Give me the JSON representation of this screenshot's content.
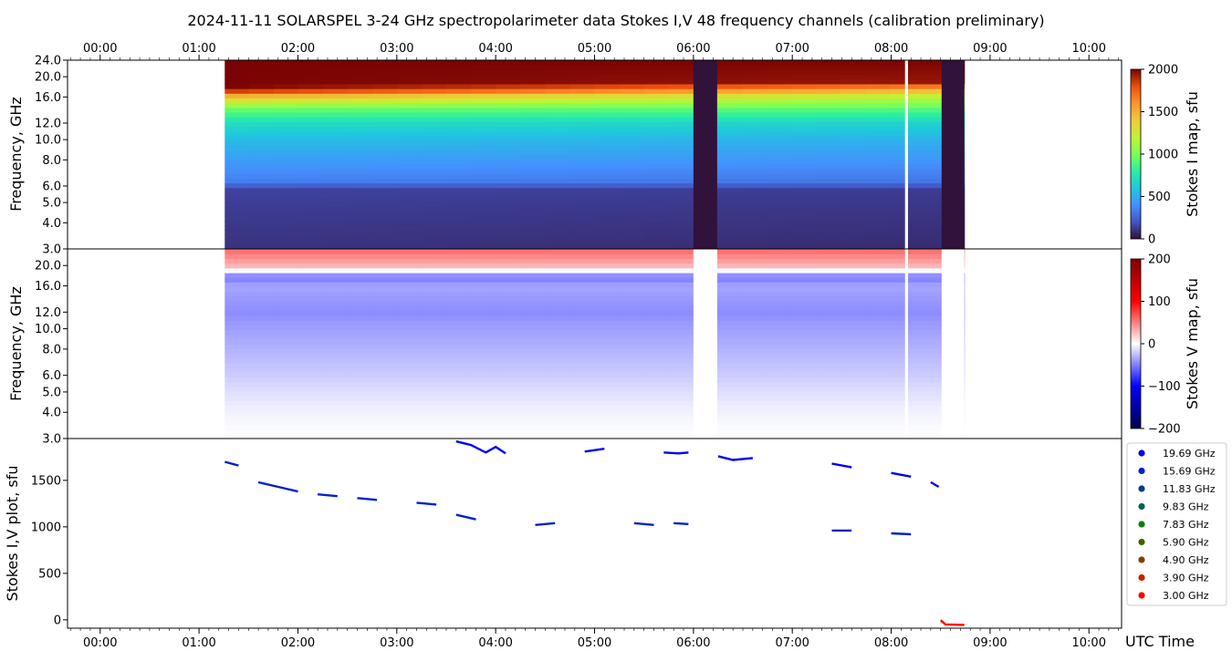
{
  "title": "2024-11-11   SOLARSPEL  3-24 GHz spectropolarimeter data   Stokes I,V   48 frequency channels   (calibration preliminary)",
  "x_axis": {
    "label": "UTC Time",
    "range_hours": [
      -0.33,
      10.33
    ],
    "ticks": [
      "00:00",
      "01:00",
      "02:00",
      "03:00",
      "04:00",
      "05:00",
      "06:00",
      "07:00",
      "08:00",
      "09:00",
      "10:00"
    ]
  },
  "chart_data": [
    {
      "type": "heatmap",
      "name": "stokes-i-map",
      "ylabel": "Frequency, GHz",
      "y_scale": "log",
      "ylim": [
        3.0,
        24.0
      ],
      "y_ticks": [
        "3.0",
        "4.0",
        "5.0",
        "6.0",
        "8.0",
        "10.0",
        "12.0",
        "16.0",
        "20.0",
        "24.0"
      ],
      "colorbar": {
        "label": "Stokes I map, sfu",
        "colormap": "turbo",
        "range": [
          0,
          2000
        ],
        "ticks": [
          "0",
          "500",
          "1000",
          "1500",
          "2000"
        ]
      },
      "data_span_hours": [
        1.26,
        8.74
      ],
      "gaps_hours": [
        [
          6.0,
          6.24
        ],
        [
          8.14,
          8.17
        ],
        [
          8.51,
          8.74
        ]
      ],
      "profile": {
        "freq_ghz": [
          3.0,
          6.0,
          6.1,
          8.0,
          10.0,
          12.0,
          14.0,
          16.0,
          17.5,
          19.0,
          24.0
        ],
        "sfu_start": [
          100,
          150,
          330,
          450,
          560,
          700,
          950,
          1400,
          2000,
          2000,
          2000
        ],
        "sfu_end": [
          80,
          130,
          300,
          420,
          520,
          650,
          900,
          1150,
          1500,
          1950,
          2000
        ]
      }
    },
    {
      "type": "heatmap",
      "name": "stokes-v-map",
      "ylabel": "Frequency, GHz",
      "y_scale": "log",
      "ylim": [
        3.0,
        24.0
      ],
      "y_ticks": [
        "3.0",
        "4.0",
        "5.0",
        "6.0",
        "8.0",
        "10.0",
        "12.0",
        "16.0",
        "20.0"
      ],
      "colorbar": {
        "label": "Stokes V map, sfu",
        "colormap": "seismic",
        "range": [
          -200,
          200
        ],
        "ticks": [
          "−200",
          "−100",
          "0",
          "100",
          "200"
        ]
      },
      "data_span_hours": [
        1.26,
        8.74
      ],
      "gaps_hours": [
        [
          6.0,
          6.24
        ],
        [
          8.14,
          8.17
        ],
        [
          8.51,
          8.74
        ]
      ],
      "profile": {
        "freq_ghz": [
          3.0,
          4.0,
          6.0,
          8.0,
          10.0,
          12.0,
          16.0,
          17.8,
          19.5,
          22.0,
          24.0
        ],
        "sfu": [
          0,
          -5,
          -20,
          -30,
          -38,
          -45,
          -35,
          -55,
          25,
          45,
          60
        ]
      }
    },
    {
      "type": "scatter",
      "name": "stokes-iv-plot",
      "ylabel": "Stokes I,V plot, sfu",
      "ylim": [
        -90,
        1950
      ],
      "y_ticks": [
        0,
        500,
        1000,
        1500
      ],
      "legend_position": "right",
      "series": [
        {
          "name": "19.69 GHz",
          "color": "#0000ee",
          "x": [
            3.6,
            3.75,
            3.9,
            4.0,
            4.1,
            4.3,
            4.5,
            4.7,
            4.9,
            5.1,
            5.3,
            5.5,
            5.7,
            5.85,
            5.95,
            6.25,
            6.4,
            6.6,
            6.8,
            7.0,
            7.2,
            7.4,
            7.6,
            7.8,
            8.0,
            8.2,
            8.4,
            8.48
          ],
          "y": [
            1920,
            1880,
            1800,
            1860,
            1790,
            1760,
            1740,
            1760,
            1810,
            1840,
            1860,
            1760,
            1800,
            1790,
            1800,
            1760,
            1720,
            1740,
            1760,
            1710,
            1700,
            1680,
            1640,
            1620,
            1580,
            1540,
            1480,
            1430
          ]
        },
        {
          "name": "15.69 GHz",
          "color": "#0022cc",
          "x": [
            1.26,
            1.4,
            1.6,
            1.8,
            2.0,
            2.2,
            2.4,
            2.6,
            2.8,
            3.0,
            3.2,
            3.4,
            3.6,
            3.8,
            4.0,
            4.2,
            4.4,
            4.6,
            4.8,
            5.0,
            5.2,
            5.4,
            5.6,
            5.8,
            5.95,
            6.25,
            6.5,
            6.8,
            7.0,
            7.2,
            7.4,
            7.6,
            7.8,
            8.0,
            8.2,
            8.48
          ],
          "y": [
            1700,
            1660,
            1480,
            1430,
            1380,
            1350,
            1330,
            1310,
            1290,
            1270,
            1260,
            1240,
            1130,
            1080,
            1060,
            1020,
            1020,
            1040,
            1020,
            1040,
            1020,
            1040,
            1020,
            1040,
            1030,
            1000,
            970,
            980,
            990,
            970,
            960,
            960,
            940,
            930,
            920,
            870
          ]
        },
        {
          "name": "11.83 GHz",
          "color": "#004080",
          "x": [
            1.26,
            1.5,
            2.0,
            2.5,
            3.0,
            3.5,
            4.0,
            4.5,
            5.0,
            5.5,
            5.95,
            6.25,
            6.5,
            7.0,
            7.5,
            8.0,
            8.48
          ],
          "y": [
            810,
            790,
            740,
            715,
            690,
            675,
            650,
            645,
            640,
            640,
            640,
            625,
            630,
            628,
            628,
            626,
            622
          ]
        },
        {
          "name": "9.83 GHz",
          "color": "#006050",
          "x": [
            1.26,
            1.5,
            2.0,
            2.5,
            3.0,
            3.5,
            4.0,
            4.5,
            5.0,
            5.5,
            5.95,
            6.25,
            6.5,
            7.0,
            7.5,
            8.0,
            8.48
          ],
          "y": [
            630,
            615,
            575,
            560,
            545,
            530,
            520,
            515,
            510,
            505,
            505,
            500,
            500,
            500,
            500,
            498,
            495
          ]
        },
        {
          "name": "7.83 GHz",
          "color": "#00800a",
          "x": [
            1.26,
            1.5,
            2.0,
            2.5,
            3.0,
            3.5,
            4.0,
            4.5,
            5.0,
            5.5,
            5.95,
            6.25,
            6.5,
            7.0,
            7.5,
            8.0,
            8.48
          ],
          "y": [
            440,
            430,
            405,
            395,
            385,
            378,
            370,
            362,
            360,
            360,
            360,
            350,
            350,
            348,
            346,
            345,
            343
          ]
        },
        {
          "name": "5.90 GHz",
          "color": "#406000",
          "x": [
            1.26,
            2.0,
            3.0,
            4.0,
            5.0,
            5.95,
            6.25,
            7.0,
            8.0,
            8.48
          ],
          "y": [
            215,
            225,
            220,
            220,
            218,
            220,
            210,
            205,
            200,
            198
          ]
        },
        {
          "name": "4.90 GHz",
          "color": "#804000",
          "x": [
            1.26,
            2.0,
            3.0,
            4.0,
            5.0,
            5.95,
            6.25,
            7.0,
            8.0,
            8.48
          ],
          "y": [
            200,
            205,
            200,
            200,
            198,
            198,
            195,
            190,
            185,
            183
          ]
        },
        {
          "name": "3.90 GHz",
          "color": "#cc2000",
          "x": [
            1.26,
            2.0,
            3.0,
            4.0,
            5.0,
            5.95,
            6.25,
            7.0,
            8.0,
            8.48
          ],
          "y": [
            180,
            185,
            182,
            182,
            180,
            180,
            175,
            172,
            170,
            168
          ]
        },
        {
          "name": "3.00 GHz",
          "color": "#ff0000",
          "x": [
            1.26,
            2.0,
            3.0,
            4.0,
            5.0,
            5.95,
            6.25,
            7.0,
            8.0,
            8.5,
            8.55,
            8.74
          ],
          "y": [
            2,
            0,
            -2,
            0,
            -2,
            0,
            -5,
            -5,
            -3,
            -5,
            -50,
            -55
          ]
        }
      ]
    }
  ]
}
